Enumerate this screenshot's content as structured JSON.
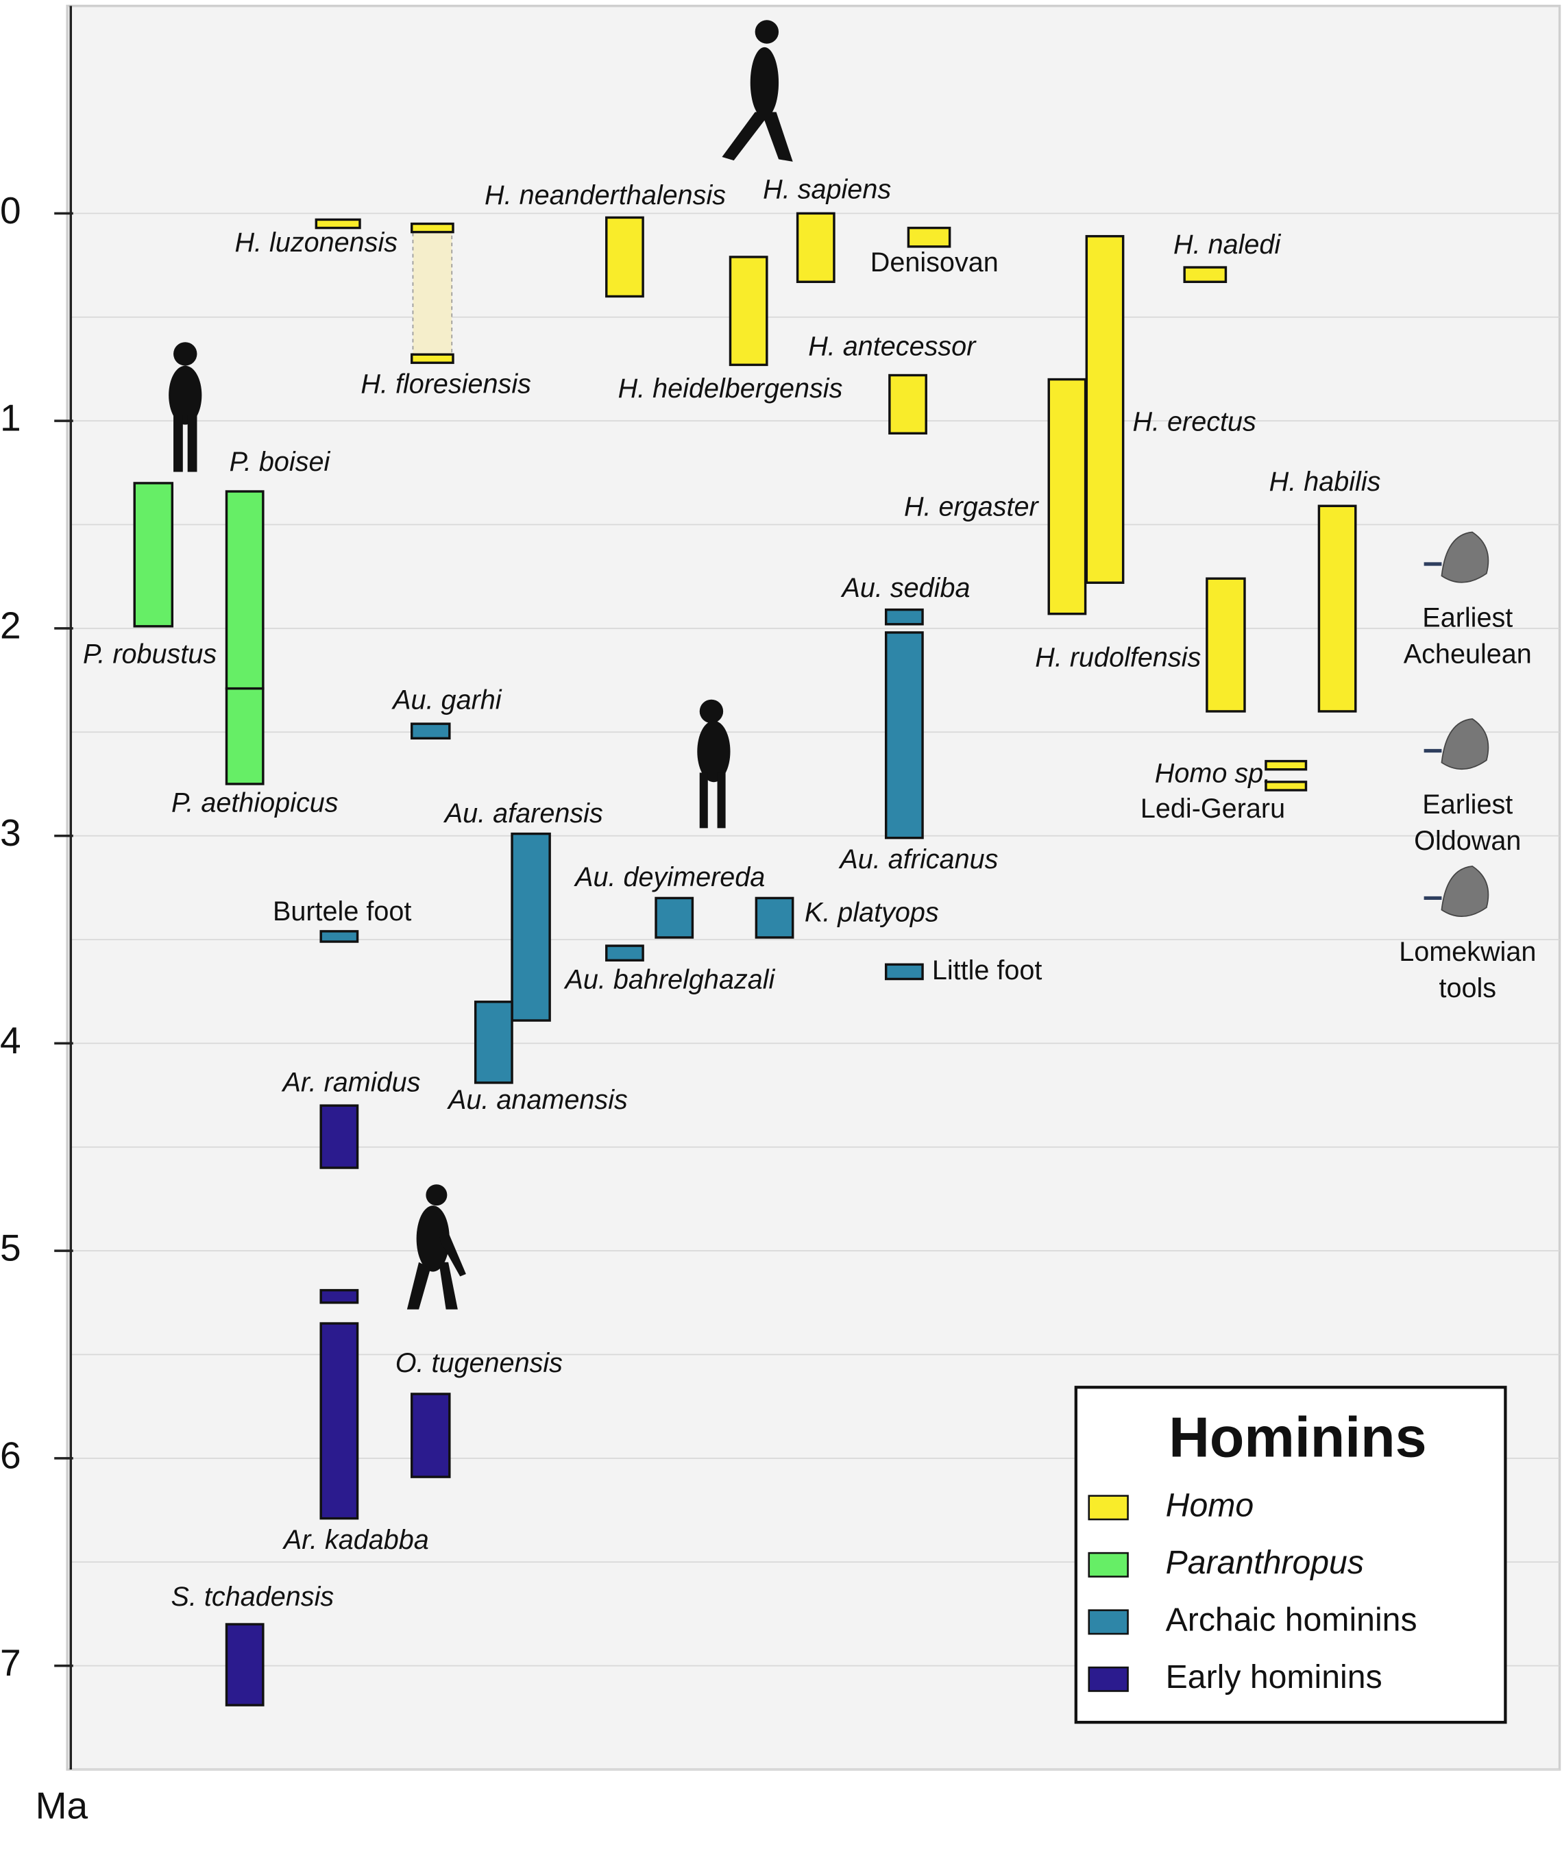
{
  "chart_data": {
    "type": "range",
    "ylabel": "Ma",
    "ylim": [
      -1,
      7.5
    ],
    "yticks": [
      0,
      1,
      2,
      3,
      4,
      5,
      6,
      7
    ],
    "ygrid": [
      0,
      0.5,
      1,
      1.5,
      2,
      2.5,
      3,
      3.5,
      4,
      4.5,
      5,
      5.5,
      6,
      6.5,
      7,
      7.5
    ],
    "legend": {
      "title": "Hominins",
      "corner": "lower right"
    },
    "groups": [
      {
        "name": "Homo",
        "color": "#f9ec2a",
        "italic": true
      },
      {
        "name": "Paranthropus",
        "color": "#66ee66",
        "italic": true
      },
      {
        "name": "Archaic hominins",
        "color": "#2e86a8",
        "italic": false
      },
      {
        "name": "Early hominins",
        "color": "#2b1b8e",
        "italic": false
      }
    ],
    "species": [
      {
        "label": [
          "H. luzonensis"
        ],
        "group": 0,
        "italic": true,
        "ranges": [
          [
            0.03,
            0.07
          ]
        ]
      },
      {
        "label": [
          "H. floresiensis"
        ],
        "group": 0,
        "italic": true,
        "ranges": [
          [
            0.05,
            0.09
          ],
          [
            0.68,
            0.72
          ]
        ],
        "span_dashed": true
      },
      {
        "label": [
          "H. neanderthalensis"
        ],
        "group": 0,
        "italic": true,
        "ranges": [
          [
            0.02,
            0.4
          ]
        ]
      },
      {
        "label": [
          "H. sapiens"
        ],
        "group": 0,
        "italic": true,
        "ranges": [
          [
            0,
            0.33
          ]
        ]
      },
      {
        "label": [
          "H. heidelbergensis"
        ],
        "group": 0,
        "italic": true,
        "ranges": [
          [
            0.21,
            0.73
          ]
        ]
      },
      {
        "label": [
          "Denisovan"
        ],
        "group": 0,
        "italic": false,
        "ranges": [
          [
            0.07,
            0.16
          ]
        ]
      },
      {
        "label": [
          "H. antecessor"
        ],
        "group": 0,
        "italic": true,
        "ranges": [
          [
            0.78,
            1.06
          ]
        ]
      },
      {
        "label": [
          "H. erectus"
        ],
        "group": 0,
        "italic": true,
        "ranges": [
          [
            0.11,
            1.78
          ]
        ]
      },
      {
        "label": [
          "H. ergaster"
        ],
        "group": 0,
        "italic": true,
        "ranges": [
          [
            0.8,
            1.93
          ]
        ]
      },
      {
        "label": [
          "H. naledi"
        ],
        "group": 0,
        "italic": true,
        "ranges": [
          [
            0.26,
            0.33
          ]
        ]
      },
      {
        "label": [
          "H. habilis"
        ],
        "group": 0,
        "italic": true,
        "ranges": [
          [
            1.41,
            2.4
          ]
        ]
      },
      {
        "label": [
          "H. rudolfensis"
        ],
        "group": 0,
        "italic": true,
        "ranges": [
          [
            1.76,
            2.4
          ]
        ]
      },
      {
        "label": [
          "Homo sp.",
          "Ledi-Geraru"
        ],
        "group": 0,
        "italic": false,
        "ranges": [
          [
            2.64,
            2.68
          ],
          [
            2.74,
            2.78
          ]
        ]
      },
      {
        "label": [
          "P. robustus"
        ],
        "group": 1,
        "italic": true,
        "ranges": [
          [
            1.3,
            1.99
          ]
        ]
      },
      {
        "label": [
          "P. boisei"
        ],
        "group": 1,
        "italic": true,
        "ranges": [
          [
            1.34,
            2.29
          ]
        ]
      },
      {
        "label": [
          "P. aethiopicus"
        ],
        "group": 1,
        "italic": true,
        "ranges": [
          [
            2.29,
            2.75
          ]
        ]
      },
      {
        "label": [
          "Au. garhi"
        ],
        "group": 2,
        "italic": true,
        "ranges": [
          [
            2.46,
            2.53
          ]
        ]
      },
      {
        "label": [
          "Au. sediba"
        ],
        "group": 2,
        "italic": true,
        "ranges": [
          [
            1.91,
            1.98
          ]
        ]
      },
      {
        "label": [
          "Au. africanus"
        ],
        "group": 2,
        "italic": true,
        "ranges": [
          [
            2.02,
            3.01
          ]
        ]
      },
      {
        "label": [
          "Au. afarensis"
        ],
        "group": 2,
        "italic": true,
        "ranges": [
          [
            2.99,
            3.89
          ]
        ]
      },
      {
        "label": [
          "Au. anamensis"
        ],
        "group": 2,
        "italic": true,
        "ranges": [
          [
            3.8,
            4.19
          ]
        ]
      },
      {
        "label": [
          "Au. deyimereda"
        ],
        "group": 2,
        "italic": true,
        "ranges": [
          [
            3.3,
            3.49
          ]
        ]
      },
      {
        "label": [
          "Au. bahrelghazali"
        ],
        "group": 2,
        "italic": true,
        "ranges": [
          [
            3.53,
            3.6
          ]
        ]
      },
      {
        "label": [
          "K. platyops"
        ],
        "group": 2,
        "italic": true,
        "ranges": [
          [
            3.3,
            3.49
          ]
        ]
      },
      {
        "label": [
          "Burtele foot"
        ],
        "group": 2,
        "italic": false,
        "ranges": [
          [
            3.46,
            3.51
          ]
        ]
      },
      {
        "label": [
          "Little foot"
        ],
        "group": 2,
        "italic": false,
        "ranges": [
          [
            3.62,
            3.69
          ]
        ]
      },
      {
        "label": [
          "Ar. ramidus"
        ],
        "group": 3,
        "italic": true,
        "ranges": [
          [
            4.3,
            4.6
          ]
        ]
      },
      {
        "label": [
          "Ar. kadabba"
        ],
        "group": 3,
        "italic": true,
        "ranges": [
          [
            5.19,
            5.25
          ],
          [
            5.35,
            6.29
          ]
        ]
      },
      {
        "label": [
          "O. tugenensis"
        ],
        "group": 3,
        "italic": true,
        "ranges": [
          [
            5.69,
            6.09
          ]
        ]
      },
      {
        "label": [
          "S. tchadensis"
        ],
        "group": 3,
        "italic": true,
        "ranges": [
          [
            6.8,
            7.19
          ]
        ]
      }
    ],
    "tools": [
      {
        "label": [
          "Earliest",
          "Acheulean"
        ],
        "age": 1.69
      },
      {
        "label": [
          "Earliest",
          "Oldowan"
        ],
        "age": 2.59
      },
      {
        "label": [
          "Lomekwian",
          "tools"
        ],
        "age": 3.3
      }
    ]
  }
}
